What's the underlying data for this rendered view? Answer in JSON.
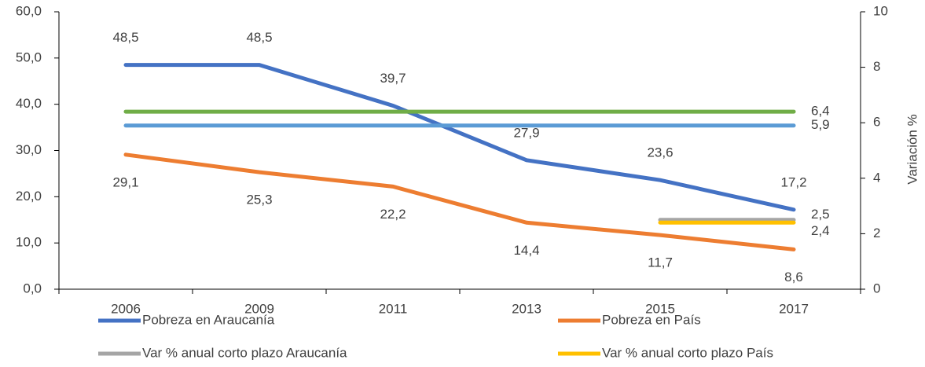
{
  "chart_data": {
    "type": "line",
    "categories": [
      "2006",
      "2009",
      "2011",
      "2013",
      "2015",
      "2017"
    ],
    "series": [
      {
        "name": "Pobreza en Araucanía",
        "color": "#4472c4",
        "values": [
          48.5,
          48.5,
          39.7,
          27.9,
          23.6,
          17.2
        ],
        "value_labels": [
          "48,5",
          "48,5",
          "39,7",
          "27,9",
          "23,6",
          "17,2"
        ]
      },
      {
        "name": "Pobreza en País",
        "color": "#ed7d31",
        "values": [
          29.1,
          25.3,
          22.2,
          14.4,
          11.7,
          8.6
        ],
        "value_labels": [
          "29,1",
          "25,3",
          "22,2",
          "14,4",
          "11,7",
          "8,6"
        ]
      },
      {
        "color": "#70ad47",
        "axis": "y2",
        "values": [
          6.4,
          6.4,
          6.4,
          6.4,
          6.4,
          6.4
        ],
        "value_labels": [
          null,
          null,
          null,
          null,
          null,
          "6,4"
        ]
      },
      {
        "color": "#5b9bd5",
        "axis": "y2",
        "values": [
          5.9,
          5.9,
          5.9,
          5.9,
          5.9,
          5.9
        ],
        "value_labels": [
          null,
          null,
          null,
          null,
          null,
          "5,9"
        ]
      },
      {
        "name": "Var % anual corto plazo Araucanía",
        "color": "#a5a5a5",
        "axis": "y2",
        "values": [
          null,
          null,
          null,
          null,
          2.5,
          2.5
        ],
        "value_labels": [
          null,
          null,
          null,
          null,
          null,
          "2,5"
        ]
      },
      {
        "name": "Var % anual corto plazo País",
        "color": "#ffc000",
        "axis": "y2",
        "values": [
          null,
          null,
          null,
          null,
          2.4,
          2.4
        ],
        "value_labels": [
          null,
          null,
          null,
          null,
          null,
          "2,4"
        ]
      }
    ],
    "ylim": [
      0,
      60
    ],
    "yticks": [
      {
        "value": 0,
        "label": "0,0"
      },
      {
        "value": 10,
        "label": "10,0"
      },
      {
        "value": 20,
        "label": "20,0"
      },
      {
        "value": 30,
        "label": "30,0"
      },
      {
        "value": 40,
        "label": "40,0"
      },
      {
        "value": 50,
        "label": "50,0"
      },
      {
        "value": 60,
        "label": "60,0"
      }
    ],
    "y2lim": [
      0,
      10
    ],
    "y2ticks": [
      0,
      2,
      4,
      6,
      8,
      10
    ],
    "y2label": "Variación %",
    "legend": "bottom"
  }
}
